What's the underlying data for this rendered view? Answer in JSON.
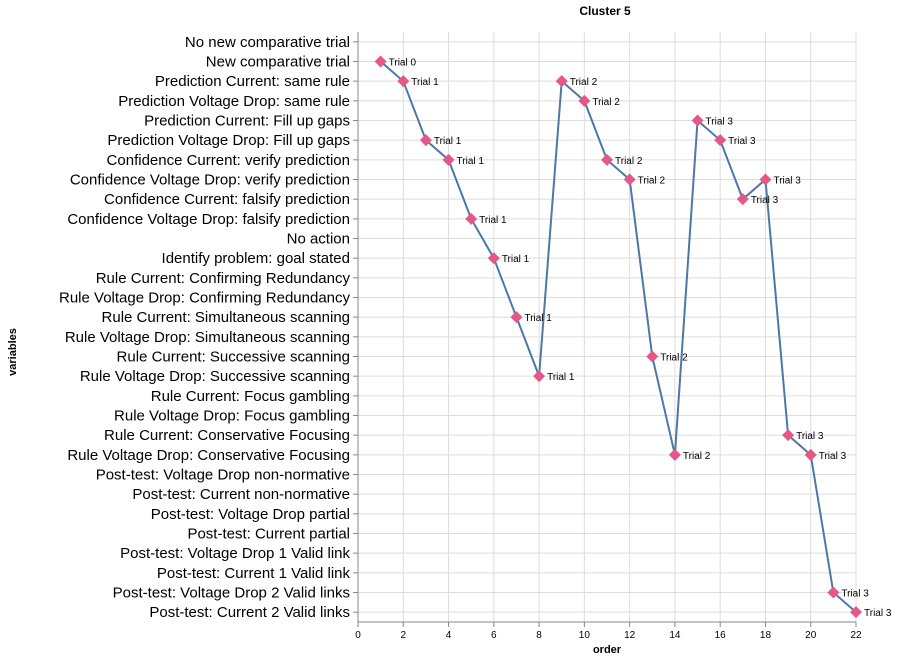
{
  "chart_data": {
    "type": "line",
    "title": "Cluster 5",
    "xlabel": "order",
    "ylabel": "variables",
    "xlim": [
      0,
      22
    ],
    "x_ticks": [
      0,
      2,
      4,
      6,
      8,
      10,
      12,
      14,
      16,
      18,
      20,
      22
    ],
    "grid": true,
    "categories": [
      "No new comparative trial",
      "New comparative trial",
      "Prediction Current: same rule",
      "Prediction Voltage Drop: same rule",
      "Prediction Current: Fill up gaps",
      "Prediction Voltage Drop: Fill up gaps",
      "Confidence Current: verify prediction",
      "Confidence Voltage Drop: verify prediction",
      "Confidence Current: falsify prediction",
      "Confidence Voltage Drop: falsify prediction",
      "No action",
      "Identify problem: goal stated",
      "Rule Current: Confirming Redundancy",
      "Rule Voltage Drop: Confirming Redundancy",
      "Rule Current: Simultaneous scanning",
      "Rule Voltage Drop: Simultaneous scanning",
      "Rule Current: Successive scanning",
      "Rule Voltage Drop: Successive scanning",
      "Rule Current: Focus gambling",
      "Rule Voltage Drop: Focus gambling",
      "Rule Current: Conservative Focusing",
      "Rule Voltage Drop: Conservative Focusing",
      "Post-test: Voltage Drop non-normative",
      "Post-test: Current non-normative",
      "Post-test: Voltage Drop partial",
      "Post-test: Current partial",
      "Post-test: Voltage Drop 1 Valid link",
      "Post-test: Current 1 Valid link",
      "Post-test: Voltage Drop 2 Valid links",
      "Post-test: Current 2 Valid links"
    ],
    "points": [
      {
        "x": 1,
        "y": "New comparative trial",
        "label": "Trial 0"
      },
      {
        "x": 2,
        "y": "Prediction Current: same rule",
        "label": "Trial 1"
      },
      {
        "x": 3,
        "y": "Prediction Voltage Drop: Fill up gaps",
        "label": "Trial 1"
      },
      {
        "x": 4,
        "y": "Confidence Current: verify prediction",
        "label": "Trial 1"
      },
      {
        "x": 5,
        "y": "Confidence Voltage Drop: falsify prediction",
        "label": "Trial 1"
      },
      {
        "x": 6,
        "y": "Identify problem: goal stated",
        "label": "Trial 1"
      },
      {
        "x": 7,
        "y": "Rule Current: Simultaneous scanning",
        "label": "Trial 1"
      },
      {
        "x": 8,
        "y": "Rule Voltage Drop: Successive scanning",
        "label": "Trial 1"
      },
      {
        "x": 9,
        "y": "Prediction Current: same rule",
        "label": "Trial 2"
      },
      {
        "x": 10,
        "y": "Prediction Voltage Drop: same rule",
        "label": "Trial 2"
      },
      {
        "x": 11,
        "y": "Confidence Current: verify prediction",
        "label": "Trial 2"
      },
      {
        "x": 12,
        "y": "Confidence Voltage Drop: verify prediction",
        "label": "Trial 2"
      },
      {
        "x": 13,
        "y": "Rule Current: Successive scanning",
        "label": "Trial 2"
      },
      {
        "x": 14,
        "y": "Rule Voltage Drop: Conservative Focusing",
        "label": "Trial 2"
      },
      {
        "x": 15,
        "y": "Prediction Current: Fill up gaps",
        "label": "Trial 3"
      },
      {
        "x": 16,
        "y": "Prediction Voltage Drop: Fill up gaps",
        "label": "Trial 3"
      },
      {
        "x": 17,
        "y": "Confidence Current: falsify prediction",
        "label": "Trial 3"
      },
      {
        "x": 18,
        "y": "Confidence Voltage Drop: verify prediction",
        "label": "Trial 3"
      },
      {
        "x": 19,
        "y": "Rule Current: Conservative Focusing",
        "label": "Trial 3"
      },
      {
        "x": 20,
        "y": "Rule Voltage Drop: Conservative Focusing",
        "label": "Trial 3"
      },
      {
        "x": 21,
        "y": "Post-test: Voltage Drop 2 Valid links",
        "label": "Trial 3"
      },
      {
        "x": 22,
        "y": "Post-test: Current 2 Valid links",
        "label": "Trial 3"
      }
    ],
    "colors": {
      "line": "#4c78a8",
      "marker": "#e45786",
      "grid": "#dddddd",
      "axis": "#888888"
    }
  }
}
